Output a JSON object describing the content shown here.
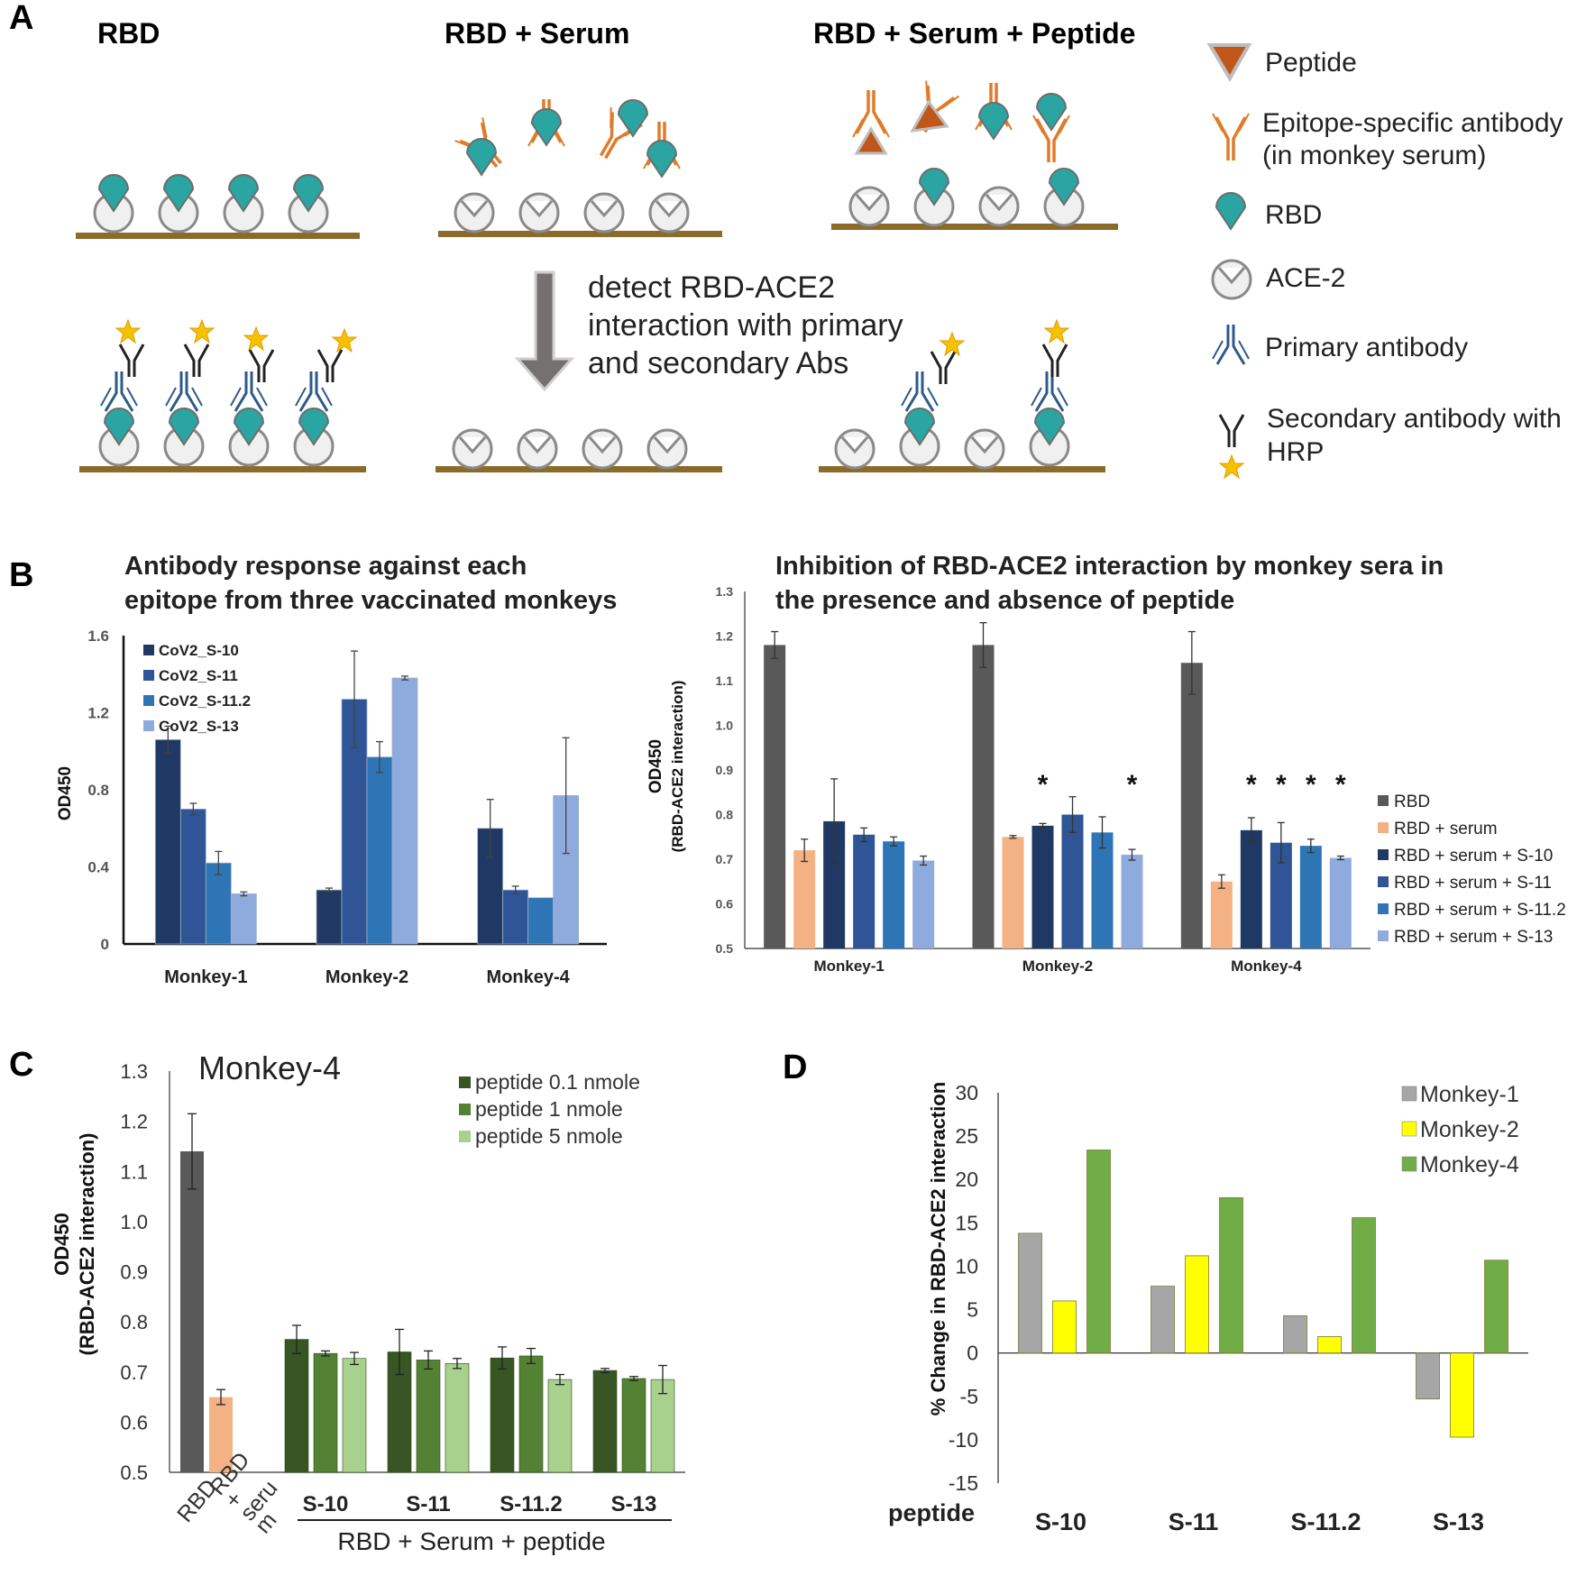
{
  "panel_labels": {
    "a": "A",
    "b": "B",
    "c": "C",
    "d": "D"
  },
  "schematic": {
    "titles": [
      "RBD",
      "RBD + Serum",
      "RBD + Serum + Peptide"
    ],
    "detect_lines": [
      "detect RBD-ACE2",
      "interaction with primary",
      "and secondary Abs"
    ],
    "legend": [
      {
        "icon": "peptide-triangle",
        "lines": [
          "Peptide"
        ]
      },
      {
        "icon": "epitope-antibody",
        "lines": [
          "Epitope-specific antibody",
          "(in monkey serum)"
        ]
      },
      {
        "icon": "rbd",
        "lines": [
          "RBD"
        ]
      },
      {
        "icon": "ace2",
        "lines": [
          "ACE-2"
        ]
      },
      {
        "icon": "primary-antibody",
        "lines": [
          "Primary antibody"
        ]
      },
      {
        "icon": "secondary-antibody-hrp",
        "lines": [
          "Secondary antibody with",
          "HRP"
        ]
      }
    ],
    "colors": {
      "rbd": "#2aa5a2",
      "epitope_ab": "#e07b2a",
      "primary_ab": "#2e5a8a",
      "peptide": "#c0561a",
      "surface": "#8b6a2a",
      "hrp": "#f6c200"
    }
  },
  "chart_data": [
    {
      "id": "B-left",
      "type": "bar",
      "title": [
        "Antibody response against each",
        "epitope from three vaccinated monkeys"
      ],
      "ylabel": "OD450",
      "xlabel": "",
      "ylim": [
        0,
        1.6
      ],
      "yticks": [
        "0",
        "0.4",
        "0.8",
        "1.2",
        "1.6"
      ],
      "ytick_values": [
        0,
        0.4,
        0.8,
        1.2,
        1.6
      ],
      "categories": [
        "Monkey-1",
        "Monkey-2",
        "Monkey-4"
      ],
      "legend_position": "top-left",
      "series": [
        {
          "name": "CoV2_S-10",
          "color": "#1f3864",
          "values": [
            1.06,
            0.28,
            0.6
          ],
          "errors": [
            0.07,
            0.01,
            0.15
          ]
        },
        {
          "name": "CoV2_S-11",
          "color": "#2f5597",
          "values": [
            0.7,
            1.27,
            0.28
          ],
          "errors": [
            0.03,
            0.25,
            0.02
          ]
        },
        {
          "name": "CoV2_S-11.2",
          "color": "#2e75b6",
          "values": [
            0.42,
            0.97,
            0.24
          ],
          "errors": [
            0.06,
            0.08,
            0.0
          ]
        },
        {
          "name": "CoV2_S-13",
          "color": "#8faadc",
          "values": [
            0.26,
            1.38,
            0.77
          ],
          "errors": [
            0.01,
            0.01,
            0.3
          ]
        }
      ]
    },
    {
      "id": "B-right",
      "type": "bar",
      "title": [
        "Inhibition of RBD-ACE2 interaction by monkey sera in",
        "the presence and absence of peptide"
      ],
      "ylabel": [
        "OD450",
        "(RBD-ACE2 interaction)"
      ],
      "ylim": [
        0.5,
        1.3
      ],
      "yticks": [
        "0.5",
        "0.6",
        "0.7",
        "0.8",
        "0.9",
        "1.0",
        "1.1",
        "1.2",
        "1.3"
      ],
      "ytick_values": [
        0.5,
        0.6,
        0.7,
        0.8,
        0.9,
        1.0,
        1.1,
        1.2,
        1.3
      ],
      "categories": [
        "Monkey-1",
        "Monkey-2",
        "Monkey-4"
      ],
      "legend_position": "right",
      "significance_marker": "*",
      "series": [
        {
          "name": "RBD",
          "color": "#595959",
          "values": [
            1.18,
            1.18,
            1.14
          ],
          "errors": [
            0.03,
            0.05,
            0.07
          ],
          "stars": [
            false,
            false,
            false
          ]
        },
        {
          "name": "RBD + serum",
          "color": "#f4b183",
          "values": [
            0.72,
            0.75,
            0.65
          ],
          "errors": [
            0.025,
            0.003,
            0.015
          ],
          "stars": [
            false,
            false,
            false
          ]
        },
        {
          "name": "RBD + serum + S-10",
          "color": "#1f3864",
          "values": [
            0.785,
            0.775,
            0.765
          ],
          "errors": [
            0.095,
            0.005,
            0.028
          ],
          "stars": [
            false,
            true,
            true
          ]
        },
        {
          "name": "RBD + serum + S-11",
          "color": "#2f5597",
          "values": [
            0.755,
            0.8,
            0.737
          ],
          "errors": [
            0.015,
            0.04,
            0.045
          ],
          "stars": [
            false,
            false,
            true
          ]
        },
        {
          "name": "RBD + serum + S-11.2",
          "color": "#2e75b6",
          "values": [
            0.74,
            0.76,
            0.73
          ],
          "errors": [
            0.01,
            0.035,
            0.015
          ],
          "stars": [
            false,
            false,
            true
          ]
        },
        {
          "name": "RBD + serum + S-13",
          "color": "#8faadc",
          "values": [
            0.697,
            0.71,
            0.703
          ],
          "errors": [
            0.01,
            0.012,
            0.004
          ],
          "stars": [
            false,
            true,
            true
          ]
        }
      ]
    },
    {
      "id": "C",
      "type": "bar",
      "title": "Monkey-4",
      "ylabel": [
        "OD450",
        "(RBD-ACE2 interaction)"
      ],
      "ylim": [
        0.5,
        1.3
      ],
      "yticks": [
        "0.5",
        "0.6",
        "0.7",
        "0.8",
        "0.9",
        "1.0",
        "1.1",
        "1.2",
        "1.3"
      ],
      "ytick_values": [
        0.5,
        0.6,
        0.7,
        0.8,
        0.9,
        1.0,
        1.1,
        1.2,
        1.3
      ],
      "controls": [
        {
          "label": "RBD",
          "value": 1.14,
          "error": 0.075,
          "color": "#595959"
        },
        {
          "label": "RBD + serum",
          "value": 0.65,
          "error": 0.015,
          "color": "#f4b183"
        }
      ],
      "control_label_lines": [
        [
          "RBD"
        ],
        [
          "RBD",
          "+",
          "seru",
          "m"
        ]
      ],
      "categories": [
        "S-10",
        "S-11",
        "S-11.2",
        "S-13"
      ],
      "group_label": "RBD + Serum + peptide",
      "legend_position": "top-right",
      "series": [
        {
          "name": "peptide 0.1 nmole",
          "color": "#375623",
          "values": [
            0.765,
            0.74,
            0.728,
            0.703
          ],
          "errors": [
            0.028,
            0.045,
            0.022,
            0.004
          ]
        },
        {
          "name": "peptide 1 nmole",
          "color": "#548235",
          "values": [
            0.737,
            0.724,
            0.732,
            0.687
          ],
          "errors": [
            0.005,
            0.018,
            0.015,
            0.004
          ]
        },
        {
          "name": "peptide 5 nmole",
          "color": "#a9d18e",
          "values": [
            0.727,
            0.717,
            0.685,
            0.685
          ],
          "errors": [
            0.012,
            0.01,
            0.01,
            0.028
          ]
        }
      ]
    },
    {
      "id": "D",
      "type": "bar",
      "ylabel": "% Change in RBD-ACE2 interaction",
      "xlabel": "peptide",
      "ylim": [
        -15,
        30
      ],
      "yticks": [
        "-15",
        "-10",
        "-5",
        "0",
        "5",
        "10",
        "15",
        "20",
        "25",
        "30"
      ],
      "ytick_values": [
        -15,
        -10,
        -5,
        0,
        5,
        10,
        15,
        20,
        25,
        30
      ],
      "categories": [
        "S-10",
        "S-11",
        "S-11.2",
        "S-13"
      ],
      "legend_position": "top-right",
      "series": [
        {
          "name": "Monkey-1",
          "color": "#a6a6a6",
          "values": [
            13.8,
            7.7,
            4.3,
            -5.3
          ]
        },
        {
          "name": "Monkey-2",
          "color": "#ffff00",
          "values": [
            6.0,
            11.2,
            1.9,
            -9.7
          ]
        },
        {
          "name": "Monkey-4",
          "color": "#70ad47",
          "values": [
            23.4,
            17.9,
            15.6,
            10.7
          ]
        }
      ]
    }
  ]
}
